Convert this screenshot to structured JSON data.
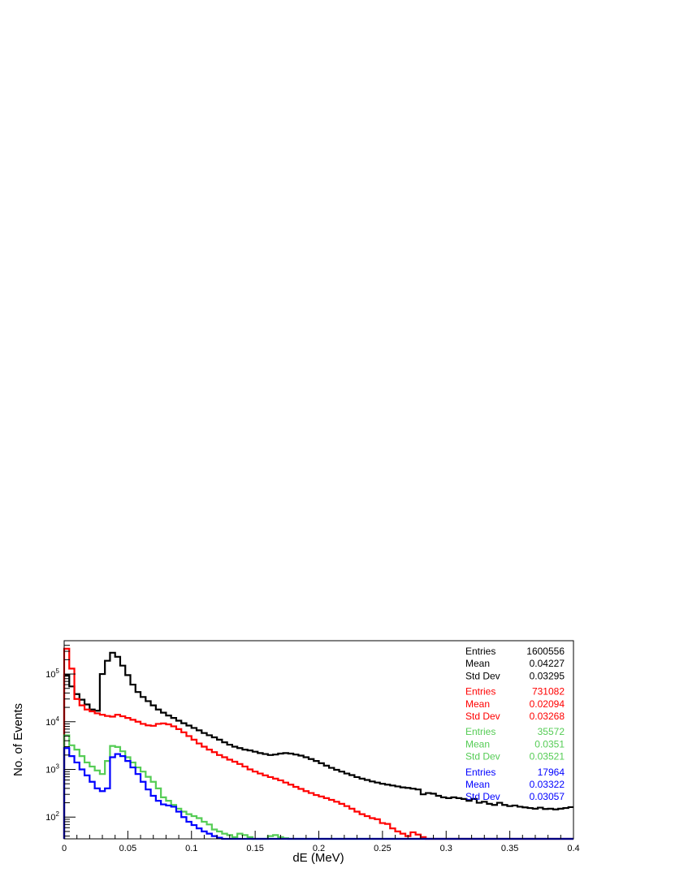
{
  "chart_data": {
    "type": "line",
    "title": "",
    "xlabel": "dE (MeV)",
    "ylabel": "No. of Events",
    "xlim": [
      0,
      0.4
    ],
    "ylim": [
      35,
      500000
    ],
    "y_scale": "log",
    "grid": false,
    "legend_placement": "top-right",
    "x_ticks": [
      {
        "v": 0,
        "label": "0"
      },
      {
        "v": 0.05,
        "label": "0.05"
      },
      {
        "v": 0.1,
        "label": "0.1"
      },
      {
        "v": 0.15,
        "label": "0.15"
      },
      {
        "v": 0.2,
        "label": "0.2"
      },
      {
        "v": 0.25,
        "label": "0.25"
      },
      {
        "v": 0.3,
        "label": "0.3"
      },
      {
        "v": 0.35,
        "label": "0.35"
      },
      {
        "v": 0.4,
        "label": "0.4"
      }
    ],
    "y_ticks": [
      {
        "v": 100,
        "base": "10",
        "exp": "2"
      },
      {
        "v": 1000,
        "base": "10",
        "exp": "3"
      },
      {
        "v": 10000,
        "base": "10",
        "exp": "4"
      },
      {
        "v": 100000,
        "base": "10",
        "exp": "5"
      }
    ],
    "bin_width": 0.004,
    "series": [
      {
        "color": "#000000",
        "values": [
          95000,
          55000,
          38000,
          29000,
          23000,
          18000,
          17000,
          100000,
          190000,
          280000,
          230000,
          150000,
          95000,
          60000,
          42000,
          33000,
          27000,
          22000,
          18000,
          15500,
          13500,
          12000,
          10500,
          9300,
          8300,
          7400,
          6600,
          5800,
          5200,
          4700,
          4200,
          3700,
          3300,
          3000,
          2800,
          2600,
          2500,
          2350,
          2200,
          2100,
          2000,
          2050,
          2150,
          2200,
          2150,
          2050,
          1950,
          1800,
          1650,
          1500,
          1350,
          1200,
          1080,
          980,
          900,
          820,
          760,
          690,
          640,
          600,
          560,
          530,
          500,
          480,
          460,
          440,
          420,
          410,
          395,
          380,
          300,
          320,
          310,
          280,
          260,
          250,
          260,
          250,
          240,
          220,
          240,
          200,
          210,
          190,
          180,
          200,
          180,
          170,
          175,
          165,
          160,
          155,
          150,
          158,
          148,
          150,
          145,
          150,
          155,
          162
        ]
      },
      {
        "color": "#ff0000",
        "values": [
          340000,
          130000,
          30000,
          22000,
          18000,
          16500,
          15000,
          14000,
          13200,
          12800,
          14000,
          13000,
          12000,
          11000,
          10000,
          9000,
          8400,
          8200,
          9000,
          9200,
          8800,
          8000,
          7000,
          6000,
          5000,
          4200,
          3500,
          3000,
          2600,
          2300,
          2000,
          1800,
          1600,
          1450,
          1300,
          1150,
          1000,
          900,
          820,
          750,
          690,
          640,
          590,
          530,
          480,
          430,
          390,
          350,
          320,
          290,
          270,
          250,
          230,
          210,
          190,
          170,
          150,
          130,
          115,
          105,
          95,
          90,
          75,
          72,
          58,
          50,
          45,
          40,
          48,
          43,
          38,
          35,
          35,
          35,
          35,
          35,
          35,
          35,
          35,
          35,
          35,
          35,
          35,
          35,
          35,
          35,
          35,
          35,
          35,
          35,
          35,
          35,
          35,
          35,
          35,
          35,
          35,
          35,
          35,
          35
        ]
      },
      {
        "color": "#55cc55",
        "values": [
          5200,
          3200,
          2600,
          1900,
          1400,
          1150,
          950,
          800,
          1500,
          3100,
          2950,
          2400,
          1800,
          1400,
          1100,
          900,
          700,
          550,
          400,
          260,
          220,
          180,
          150,
          130,
          115,
          105,
          95,
          80,
          70,
          55,
          50,
          45,
          42,
          38,
          45,
          42,
          38,
          35,
          34,
          33,
          40,
          42,
          38,
          36,
          35,
          35,
          35,
          35,
          35,
          35,
          35,
          35,
          35,
          35,
          35,
          35,
          35,
          35,
          35,
          35,
          35,
          35,
          35,
          35,
          35,
          35,
          35,
          35,
          35,
          35,
          35,
          35,
          35,
          35,
          35,
          35,
          35,
          35,
          35,
          35,
          35,
          35,
          35,
          35,
          35,
          35,
          35,
          35,
          35,
          35,
          35,
          35,
          35,
          35,
          35,
          35,
          35,
          35,
          35,
          35
        ]
      },
      {
        "color": "#0000ff",
        "values": [
          2800,
          1900,
          1400,
          1000,
          750,
          550,
          400,
          350,
          400,
          1800,
          2100,
          1900,
          1500,
          1100,
          800,
          550,
          380,
          280,
          220,
          185,
          175,
          165,
          130,
          100,
          80,
          68,
          58,
          50,
          45,
          40,
          37,
          35,
          35,
          35,
          35,
          35,
          35,
          35,
          35,
          35,
          35,
          35,
          35,
          35,
          35,
          35,
          35,
          35,
          35,
          35,
          35,
          35,
          35,
          35,
          35,
          35,
          35,
          35,
          35,
          35,
          35,
          35,
          35,
          35,
          35,
          35,
          35,
          35,
          35,
          35,
          35,
          35,
          35,
          35,
          35,
          35,
          35,
          35,
          35,
          35,
          35,
          35,
          35,
          35,
          35,
          35,
          35,
          35,
          35,
          35,
          35,
          35,
          35,
          35,
          35,
          35,
          35,
          35,
          35,
          35
        ]
      }
    ]
  },
  "stats": [
    {
      "color": "#000000",
      "rows": [
        {
          "label": "Entries",
          "value": "1600556"
        },
        {
          "label": "Mean",
          "value": "0.04227"
        },
        {
          "label": "Std Dev",
          "value": "0.03295"
        }
      ]
    },
    {
      "color": "#ff0000",
      "rows": [
        {
          "label": "Entries",
          "value": "731082"
        },
        {
          "label": "Mean",
          "value": "0.02094"
        },
        {
          "label": "Std Dev",
          "value": "0.03268"
        }
      ]
    },
    {
      "color": "#55cc55",
      "rows": [
        {
          "label": "Entries",
          "value": "35572"
        },
        {
          "label": "Mean",
          "value": "0.0351"
        },
        {
          "label": "Std Dev",
          "value": "0.03521"
        }
      ]
    },
    {
      "color": "#0000ff",
      "rows": [
        {
          "label": "Entries",
          "value": "17964"
        },
        {
          "label": "Mean",
          "value": "0.03322"
        },
        {
          "label": "Std Dev",
          "value": "0.03057"
        }
      ]
    }
  ]
}
